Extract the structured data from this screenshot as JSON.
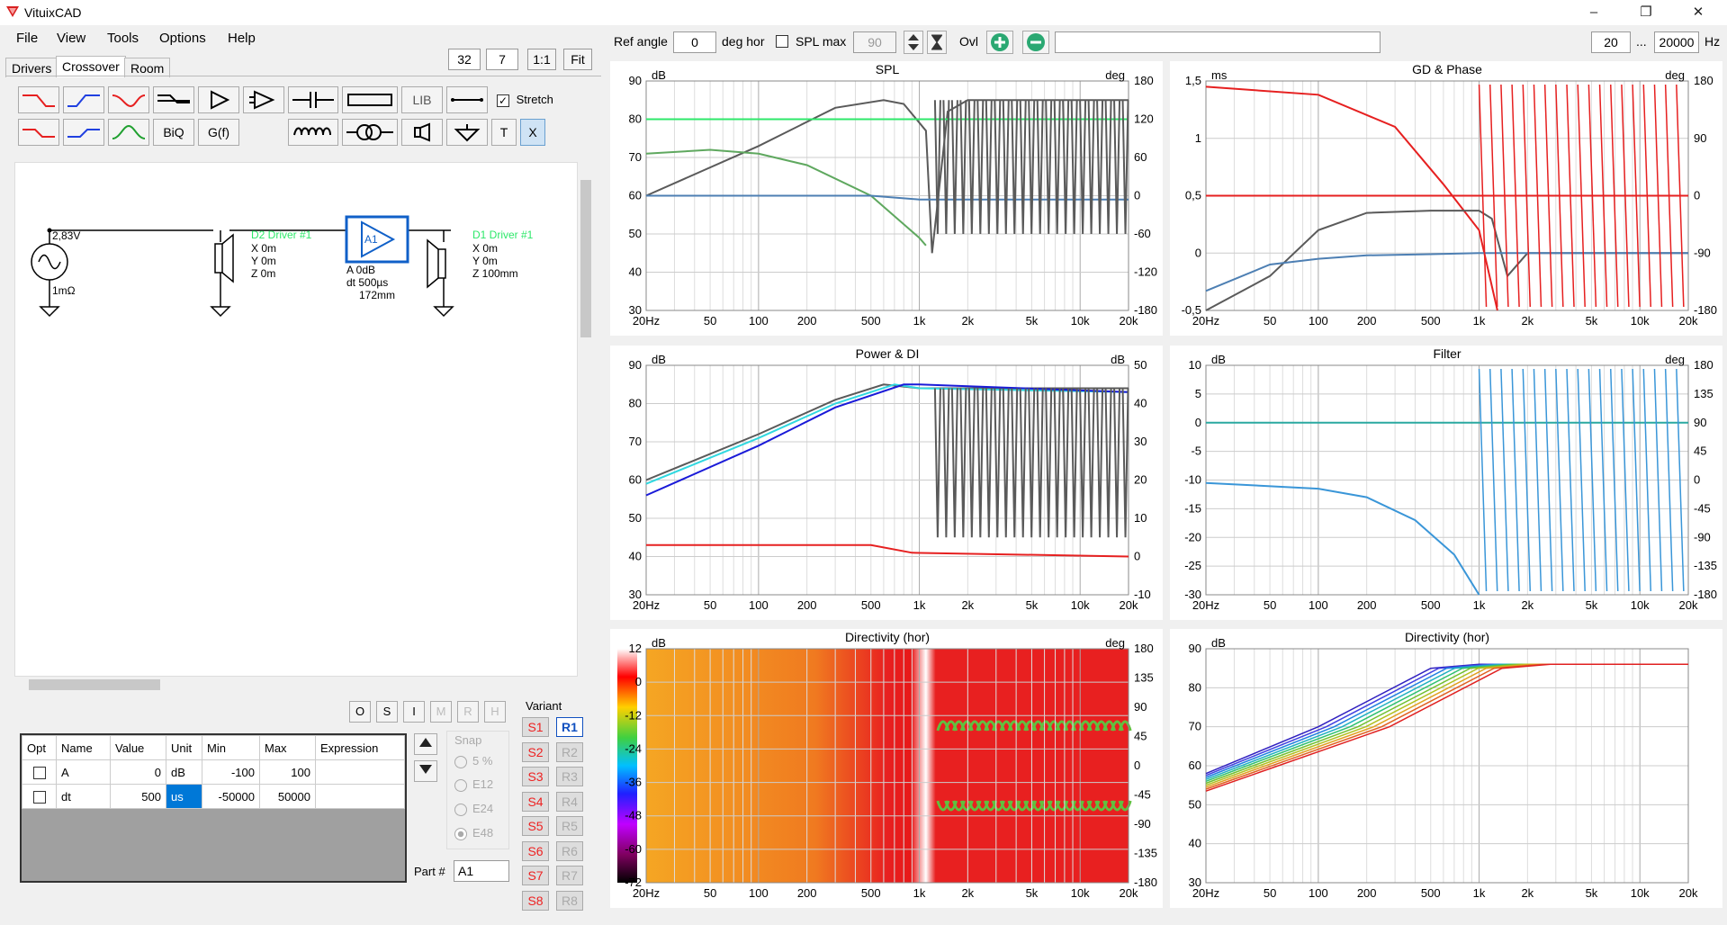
{
  "app": {
    "title": "VituixCAD"
  },
  "window_buttons": {
    "minimize": "–",
    "maximize": "❐",
    "close": "✕"
  },
  "menu": [
    "File",
    "View",
    "Tools",
    "Options",
    "Help"
  ],
  "tabs": [
    "Drivers",
    "Crossover",
    "Room"
  ],
  "left_top": {
    "a": "32",
    "b": "7",
    "one": "1:1",
    "fit": "Fit"
  },
  "toolbar": {
    "lib": "LIB",
    "biq": "BiQ",
    "gf": "G(f)",
    "stretch": "Stretch",
    "stretch_checked": true,
    "t": "T",
    "x": "X"
  },
  "schematic": {
    "source_v": "2,83V",
    "source_r": "1mΩ",
    "d2_name": "D2 Driver #1",
    "d2_x": "X 0m",
    "d2_y": "Y 0m",
    "d2_z": "Z 0m",
    "amp_label": "A1",
    "amp_a": "A  0dB",
    "amp_dt": "dt 500µs",
    "amp_mm": "172mm",
    "d1_name": "D1 Driver #1",
    "d1_x": "X 0m",
    "d1_y": "Y 0m",
    "d1_z": "Z 100mm"
  },
  "row_buttons": [
    "O",
    "S",
    "I",
    "M",
    "R",
    "H"
  ],
  "param_table": {
    "headers": [
      "Opt",
      "Name",
      "Value",
      "Unit",
      "Min",
      "Max",
      "Expression"
    ],
    "rows": [
      {
        "name": "A",
        "value": "0",
        "unit": "dB",
        "min": "-100",
        "max": "100",
        "expr": ""
      },
      {
        "name": "dt",
        "value": "500",
        "unit": "us",
        "min": "-50000",
        "max": "50000",
        "expr": ""
      }
    ]
  },
  "snap": {
    "label": "Snap",
    "options": [
      "5 %",
      "E12",
      "E24",
      "E48"
    ]
  },
  "part": {
    "label": "Part #",
    "value": "A1"
  },
  "variant": {
    "label": "Variant",
    "s": [
      "S1",
      "S2",
      "S3",
      "S4",
      "S5",
      "S6",
      "S7",
      "S8"
    ],
    "r": [
      "R1",
      "R2",
      "R3",
      "R4",
      "R5",
      "R6",
      "R7",
      "R8"
    ]
  },
  "top_controls": {
    "ref_angle_label": "Ref angle",
    "ref_angle": "0",
    "deg_hor": "deg hor",
    "spl_max_label": "SPL max",
    "spl_max": "90",
    "ovl": "Ovl",
    "f_min": "20",
    "f_sep": "...",
    "f_max": "20000",
    "hz": "Hz"
  },
  "colors": {
    "grey": "#5a5a5a",
    "green_bright": "#2ee86a",
    "green": "#5fa85f",
    "steel": "#4d7fb3",
    "red": "#e62020",
    "pink": "#f08080",
    "cyan": "#30d8e0",
    "blue": "#1a1ad8",
    "light_blue": "#3a96d8",
    "teal": "#2aa8a0"
  },
  "x_ticks": [
    "20Hz",
    "50",
    "100",
    "200",
    "500",
    "1k",
    "2k",
    "5k",
    "10k",
    "20k"
  ],
  "charts": [
    {
      "title": "SPL",
      "left_unit": "dB",
      "right_unit": "deg",
      "left_ticks": [
        "90",
        "80",
        "70",
        "60",
        "50",
        "40",
        "30"
      ],
      "right_ticks": [
        "180",
        "120",
        "60",
        "0",
        "-60",
        "-120",
        "-180"
      ]
    },
    {
      "title": "GD & Phase",
      "left_unit": "ms",
      "right_unit": "deg",
      "left_ticks": [
        "1,5",
        "1",
        "0,5",
        "0",
        "-0,5"
      ],
      "right_ticks": [
        "180",
        "90",
        "0",
        "-90",
        "-180"
      ]
    },
    {
      "title": "Power & DI",
      "left_unit": "dB",
      "right_unit": "dB",
      "left_ticks": [
        "90",
        "80",
        "70",
        "60",
        "50",
        "40",
        "30"
      ],
      "right_ticks": [
        "50",
        "40",
        "30",
        "20",
        "10",
        "0",
        "-10"
      ]
    },
    {
      "title": "Filter",
      "left_unit": "dB",
      "right_unit": "deg",
      "left_ticks": [
        "10",
        "5",
        "0",
        "-5",
        "-10",
        "-15",
        "-20",
        "-25",
        "-30"
      ],
      "right_ticks": [
        "180",
        "135",
        "90",
        "45",
        "0",
        "-45",
        "-90",
        "-135",
        "-180"
      ]
    },
    {
      "title": "Directivity (hor)",
      "left_unit": "dB",
      "right_unit": "deg",
      "left_ticks": [
        "12",
        "0",
        "-12",
        "-24",
        "-36",
        "-48",
        "-60",
        "-72"
      ],
      "right_ticks": [
        "180",
        "135",
        "90",
        "45",
        "0",
        "-45",
        "-90",
        "-135",
        "-180"
      ]
    },
    {
      "title": "Directivity (hor)",
      "left_unit": "dB",
      "right_unit": "",
      "left_ticks": [
        "90",
        "80",
        "70",
        "60",
        "50",
        "40",
        "30"
      ],
      "right_ticks": []
    }
  ],
  "chart_data": [
    {
      "type": "line",
      "title": "SPL",
      "xscale": "log",
      "xlim": [
        20,
        20000
      ],
      "ylim": [
        30,
        90
      ],
      "y2lim": [
        -180,
        180
      ],
      "series": [
        {
          "color": "#5a5a5a",
          "x": [
            20,
            100,
            300,
            600,
            800,
            1100,
            1200,
            1500,
            2000,
            5000,
            20000
          ],
          "y": [
            60,
            73,
            83,
            85,
            84,
            77,
            45,
            82,
            85,
            85,
            85
          ]
        },
        {
          "color": "#2ee86a",
          "x": [
            20,
            20000
          ],
          "y": [
            80,
            80
          ]
        },
        {
          "color": "#5fa85f",
          "x": [
            20,
            50,
            100,
            200,
            500,
            1000,
            1100
          ],
          "y": [
            71,
            72,
            71,
            68,
            60,
            49,
            47
          ]
        },
        {
          "color": "#4d7fb3",
          "x": [
            20,
            500,
            1000,
            20000
          ],
          "y": [
            60,
            60,
            59,
            59
          ]
        }
      ]
    },
    {
      "type": "line",
      "title": "GD & Phase",
      "xscale": "log",
      "xlim": [
        20,
        20000
      ],
      "ylim": [
        -0.5,
        1.5
      ],
      "y2lim": [
        -180,
        180
      ],
      "series": [
        {
          "color": "#e62020",
          "x": [
            20,
            100,
            300,
            600,
            1000,
            1300
          ],
          "y": [
            1.45,
            1.38,
            1.1,
            0.6,
            0.2,
            -0.5
          ]
        },
        {
          "color": "#e62020",
          "x": [
            20,
            20000
          ],
          "y": [
            0.5,
            0.5
          ]
        },
        {
          "color": "#5a5a5a",
          "x": [
            20,
            50,
            100,
            200,
            500,
            1000,
            1200,
            1500,
            2000,
            20000
          ],
          "y": [
            -0.5,
            -0.2,
            0.2,
            0.35,
            0.37,
            0.37,
            0.3,
            -0.2,
            0,
            0
          ]
        },
        {
          "color": "#4d7fb3",
          "x": [
            20,
            50,
            100,
            200,
            500,
            1000,
            20000
          ],
          "y": [
            -0.33,
            -0.1,
            -0.05,
            -0.02,
            -0.01,
            0,
            0
          ]
        }
      ]
    },
    {
      "type": "line",
      "title": "Power & DI",
      "xscale": "log",
      "xlim": [
        20,
        20000
      ],
      "ylim": [
        30,
        90
      ],
      "y2lim": [
        -10,
        50
      ],
      "series": [
        {
          "color": "#5a5a5a",
          "x": [
            20,
            100,
            300,
            600,
            1000,
            20000
          ],
          "y": [
            60,
            72,
            81,
            85,
            84,
            84
          ]
        },
        {
          "color": "#30d8e0",
          "x": [
            20,
            100,
            300,
            700,
            1000,
            20000
          ],
          "y": [
            59,
            71,
            80,
            85,
            84,
            83
          ]
        },
        {
          "color": "#1a1ad8",
          "x": [
            20,
            100,
            300,
            800,
            1000,
            20000
          ],
          "y": [
            56,
            69,
            79,
            85,
            85,
            83
          ]
        },
        {
          "color": "#e62020",
          "x": [
            20,
            500,
            900,
            20000
          ],
          "y": [
            43,
            43,
            41,
            40
          ]
        }
      ]
    },
    {
      "type": "line",
      "title": "Filter",
      "xscale": "log",
      "xlim": [
        20,
        20000
      ],
      "ylim": [
        -30,
        10
      ],
      "y2lim": [
        -180,
        180
      ],
      "series": [
        {
          "color": "#2aa8a0",
          "x": [
            20,
            20000
          ],
          "y": [
            0,
            0
          ]
        },
        {
          "color": "#3a96d8",
          "x": [
            20,
            100,
            200,
            400,
            700,
            1000
          ],
          "y": [
            -10.5,
            -11.5,
            -13,
            -17,
            -23,
            -30
          ]
        }
      ]
    },
    {
      "type": "heatmap",
      "title": "Directivity (hor)",
      "xscale": "log",
      "xlim": [
        20,
        20000
      ],
      "ylim": [
        -180,
        180
      ],
      "colorbar": [
        12,
        0,
        -12,
        -24,
        -36,
        -48,
        -60,
        -72
      ]
    },
    {
      "type": "line",
      "title": "Directivity (hor)",
      "xscale": "log",
      "xlim": [
        20,
        20000
      ],
      "ylim": [
        30,
        90
      ],
      "series_note": "angle family"
    }
  ]
}
